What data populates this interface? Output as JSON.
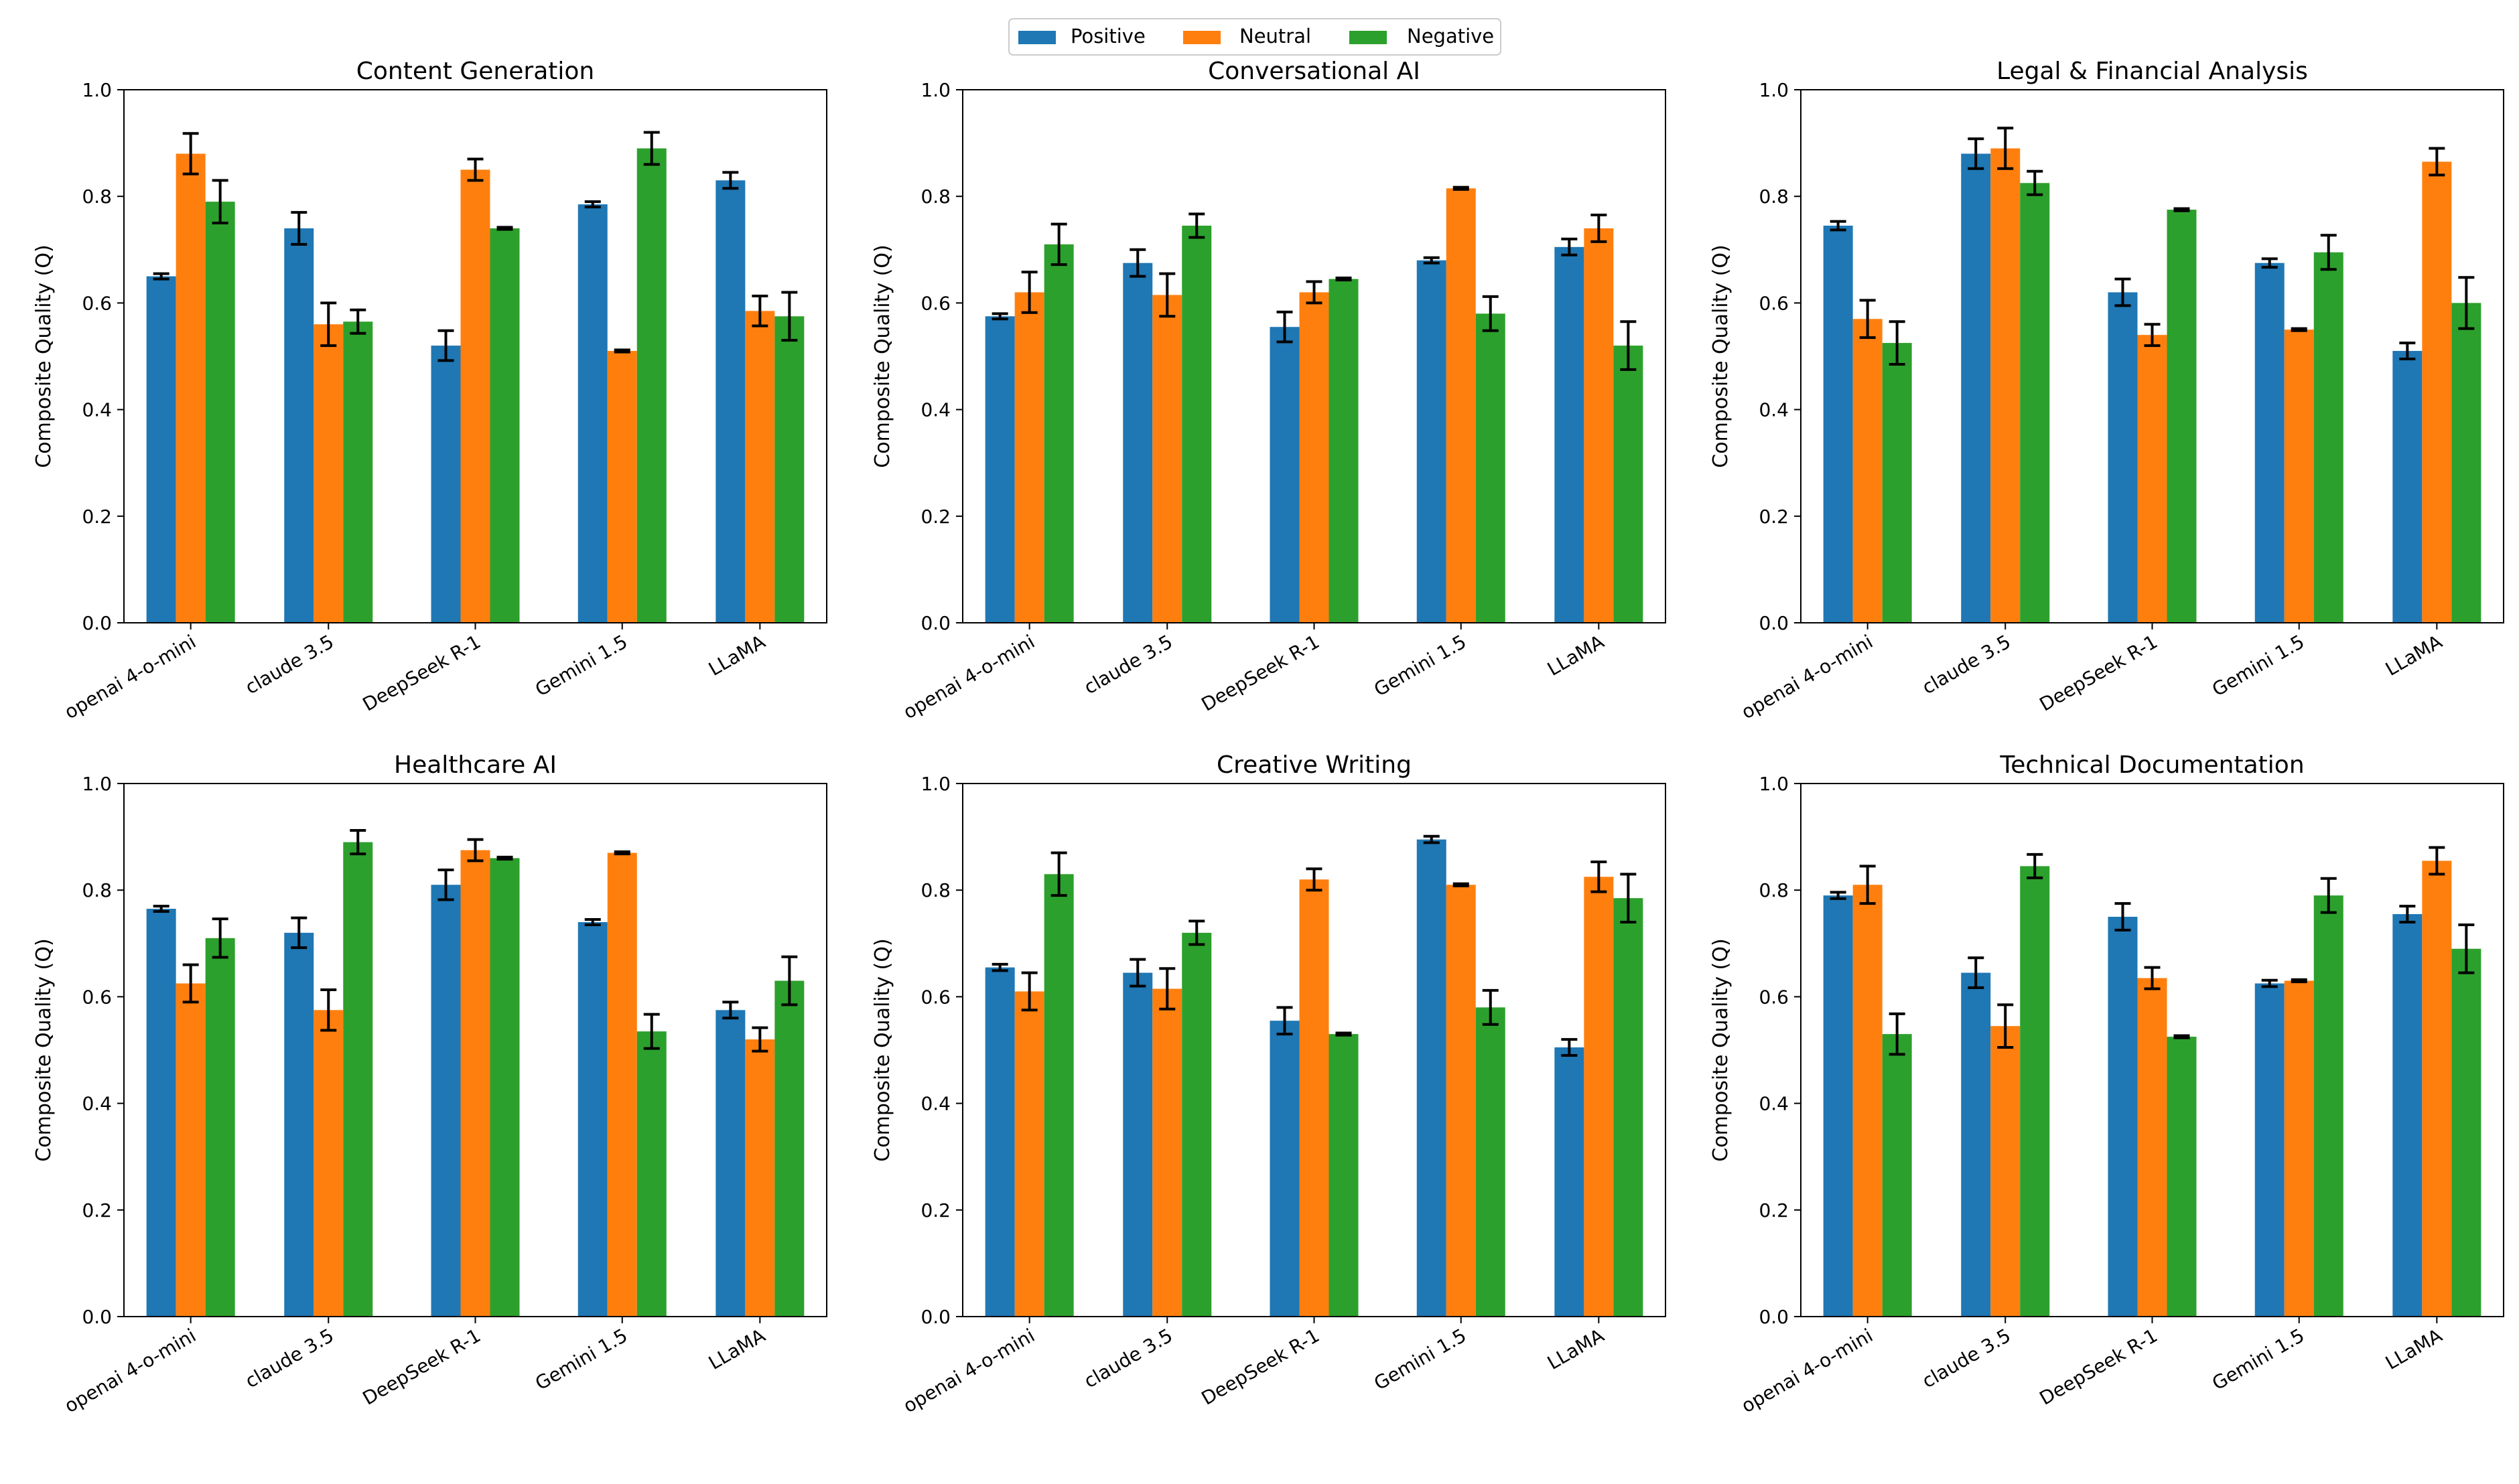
{
  "legend": {
    "items": [
      {
        "label": "Positive",
        "color": "#1f77b4"
      },
      {
        "label": "Neutral",
        "color": "#ff7f0e"
      },
      {
        "label": "Negative",
        "color": "#2ca02c"
      }
    ]
  },
  "chart_data": [
    {
      "type": "bar",
      "title": "Content Generation",
      "ylabel": "Composite Quality (Q)",
      "ylim": [
        0,
        1.0
      ],
      "yticks": [
        "0.0",
        "0.2",
        "0.4",
        "0.6",
        "0.8",
        "1.0"
      ],
      "categories": [
        "openai 4-o-mini",
        "claude 3.5",
        "DeepSeek R-1",
        "Gemini 1.5",
        "LLaMA"
      ],
      "series": [
        {
          "name": "Positive",
          "values": [
            0.65,
            0.74,
            0.52,
            0.785,
            0.83
          ],
          "errors": [
            0.005,
            0.03,
            0.028,
            0.005,
            0.015
          ]
        },
        {
          "name": "Neutral",
          "values": [
            0.88,
            0.56,
            0.85,
            0.51,
            0.585
          ],
          "errors": [
            0.038,
            0.04,
            0.02,
            0.002,
            0.028
          ]
        },
        {
          "name": "Negative",
          "values": [
            0.79,
            0.565,
            0.74,
            0.89,
            0.575
          ],
          "errors": [
            0.04,
            0.022,
            0.002,
            0.03,
            0.045
          ]
        }
      ]
    },
    {
      "type": "bar",
      "title": "Conversational AI",
      "ylabel": "Composite Quality (Q)",
      "ylim": [
        0,
        1.0
      ],
      "yticks": [
        "0.0",
        "0.2",
        "0.4",
        "0.6",
        "0.8",
        "1.0"
      ],
      "categories": [
        "openai 4-o-mini",
        "claude 3.5",
        "DeepSeek R-1",
        "Gemini 1.5",
        "LLaMA"
      ],
      "series": [
        {
          "name": "Positive",
          "values": [
            0.575,
            0.675,
            0.555,
            0.68,
            0.705
          ],
          "errors": [
            0.005,
            0.025,
            0.028,
            0.005,
            0.015
          ]
        },
        {
          "name": "Neutral",
          "values": [
            0.62,
            0.615,
            0.62,
            0.815,
            0.74
          ],
          "errors": [
            0.038,
            0.04,
            0.02,
            0.002,
            0.025
          ]
        },
        {
          "name": "Negative",
          "values": [
            0.71,
            0.745,
            0.645,
            0.58,
            0.52
          ],
          "errors": [
            0.038,
            0.022,
            0.002,
            0.032,
            0.045
          ]
        }
      ]
    },
    {
      "type": "bar",
      "title": "Legal & Financial Analysis",
      "ylabel": "Composite Quality (Q)",
      "ylim": [
        0,
        1.0
      ],
      "yticks": [
        "0.0",
        "0.2",
        "0.4",
        "0.6",
        "0.8",
        "1.0"
      ],
      "categories": [
        "openai 4-o-mini",
        "claude 3.5",
        "DeepSeek R-1",
        "Gemini 1.5",
        "LLaMA"
      ],
      "series": [
        {
          "name": "Positive",
          "values": [
            0.745,
            0.88,
            0.62,
            0.675,
            0.51
          ],
          "errors": [
            0.008,
            0.028,
            0.025,
            0.008,
            0.015
          ]
        },
        {
          "name": "Neutral",
          "values": [
            0.57,
            0.89,
            0.54,
            0.55,
            0.865
          ],
          "errors": [
            0.035,
            0.038,
            0.02,
            0.002,
            0.025
          ]
        },
        {
          "name": "Negative",
          "values": [
            0.525,
            0.825,
            0.775,
            0.695,
            0.6
          ],
          "errors": [
            0.04,
            0.022,
            0.002,
            0.032,
            0.048
          ]
        }
      ]
    },
    {
      "type": "bar",
      "title": "Healthcare AI",
      "ylabel": "Composite Quality (Q)",
      "ylim": [
        0,
        1.0
      ],
      "yticks": [
        "0.0",
        "0.2",
        "0.4",
        "0.6",
        "0.8",
        "1.0"
      ],
      "categories": [
        "openai 4-o-mini",
        "claude 3.5",
        "DeepSeek R-1",
        "Gemini 1.5",
        "LLaMA"
      ],
      "series": [
        {
          "name": "Positive",
          "values": [
            0.765,
            0.72,
            0.81,
            0.74,
            0.575
          ],
          "errors": [
            0.005,
            0.028,
            0.028,
            0.005,
            0.015
          ]
        },
        {
          "name": "Neutral",
          "values": [
            0.625,
            0.575,
            0.875,
            0.87,
            0.52
          ],
          "errors": [
            0.035,
            0.038,
            0.02,
            0.002,
            0.022
          ]
        },
        {
          "name": "Negative",
          "values": [
            0.71,
            0.89,
            0.86,
            0.535,
            0.63
          ],
          "errors": [
            0.036,
            0.022,
            0.002,
            0.032,
            0.045
          ]
        }
      ]
    },
    {
      "type": "bar",
      "title": "Creative Writing",
      "ylabel": "Composite Quality (Q)",
      "ylim": [
        0,
        1.0
      ],
      "yticks": [
        "0.0",
        "0.2",
        "0.4",
        "0.6",
        "0.8",
        "1.0"
      ],
      "categories": [
        "openai 4-o-mini",
        "claude 3.5",
        "DeepSeek R-1",
        "Gemini 1.5",
        "LLaMA"
      ],
      "series": [
        {
          "name": "Positive",
          "values": [
            0.655,
            0.645,
            0.555,
            0.895,
            0.505
          ],
          "errors": [
            0.006,
            0.025,
            0.025,
            0.006,
            0.015
          ]
        },
        {
          "name": "Neutral",
          "values": [
            0.61,
            0.615,
            0.82,
            0.81,
            0.825
          ],
          "errors": [
            0.035,
            0.038,
            0.02,
            0.002,
            0.028
          ]
        },
        {
          "name": "Negative",
          "values": [
            0.83,
            0.72,
            0.53,
            0.58,
            0.785
          ],
          "errors": [
            0.04,
            0.022,
            0.002,
            0.032,
            0.045
          ]
        }
      ]
    },
    {
      "type": "bar",
      "title": "Technical Documentation",
      "ylabel": "Composite Quality (Q)",
      "ylim": [
        0,
        1.0
      ],
      "yticks": [
        "0.0",
        "0.2",
        "0.4",
        "0.6",
        "0.8",
        "1.0"
      ],
      "categories": [
        "openai 4-o-mini",
        "claude 3.5",
        "DeepSeek R-1",
        "Gemini 1.5",
        "LLaMA"
      ],
      "series": [
        {
          "name": "Positive",
          "values": [
            0.79,
            0.645,
            0.75,
            0.625,
            0.755
          ],
          "errors": [
            0.006,
            0.028,
            0.025,
            0.006,
            0.015
          ]
        },
        {
          "name": "Neutral",
          "values": [
            0.81,
            0.545,
            0.635,
            0.63,
            0.855
          ],
          "errors": [
            0.035,
            0.04,
            0.02,
            0.002,
            0.025
          ]
        },
        {
          "name": "Negative",
          "values": [
            0.53,
            0.845,
            0.525,
            0.79,
            0.69
          ],
          "errors": [
            0.038,
            0.022,
            0.002,
            0.032,
            0.045
          ]
        }
      ]
    }
  ]
}
